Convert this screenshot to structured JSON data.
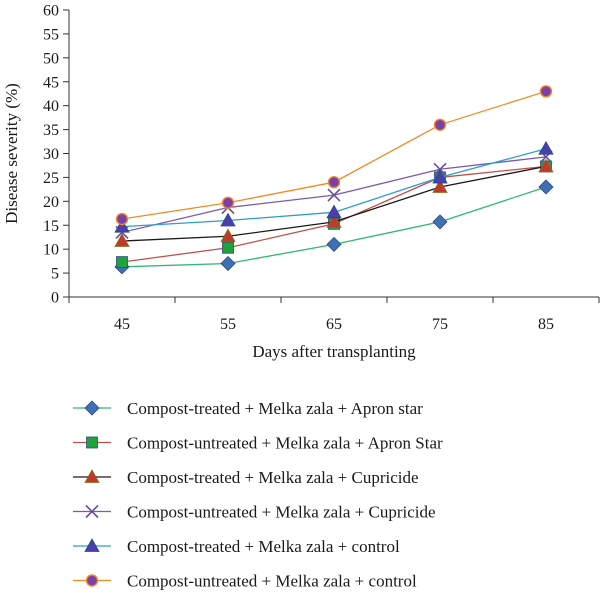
{
  "chart_data": {
    "type": "line",
    "x": [
      45,
      55,
      65,
      75,
      85
    ],
    "xlabel": "Days after transplanting",
    "ylabel": "Disease severity (%)",
    "ylim": [
      0,
      60
    ],
    "yticks": [
      0,
      5,
      10,
      15,
      20,
      25,
      30,
      35,
      40,
      45,
      50,
      55,
      60
    ],
    "grid": false,
    "legend_position": "bottom",
    "series": [
      {
        "name": "Compost-treated + Melka zala + Apron star",
        "values": [
          6.3,
          7.0,
          11.0,
          15.7,
          23.0
        ],
        "line_color": "#2eb872",
        "marker": "diamond",
        "marker_color": "#3f6fb5"
      },
      {
        "name": "Compost-untreated + Melka zala + Apron Star",
        "values": [
          7.3,
          10.3,
          15.3,
          25.0,
          27.3
        ],
        "line_color": "#c0504d",
        "marker": "square",
        "marker_color": "#1fa23a"
      },
      {
        "name": "Compost-treated + Melka zala + Cupricide",
        "values": [
          11.7,
          12.7,
          15.7,
          23.0,
          27.3
        ],
        "line_color": "#1a1a1a",
        "marker": "triangle",
        "marker_color": "#c0392b"
      },
      {
        "name": "Compost-untreated + Melka zala + Cupricide",
        "values": [
          13.5,
          18.7,
          21.3,
          26.7,
          29.3
        ],
        "line_color": "#7a5bab",
        "marker": "x",
        "marker_color": "#6a4f9a"
      },
      {
        "name": "Compost-treated + Melka zala + control",
        "values": [
          14.7,
          16.0,
          17.7,
          25.0,
          31.0
        ],
        "line_color": "#2e9fc4",
        "marker": "triangle",
        "marker_color": "#4b3fb0"
      },
      {
        "name": "Compost-untreated + Melka zala + control",
        "values": [
          16.3,
          19.7,
          24.0,
          36.0,
          43.0
        ],
        "line_color": "#f08a24",
        "marker": "circle",
        "marker_color": "#7b3fa8"
      }
    ]
  }
}
